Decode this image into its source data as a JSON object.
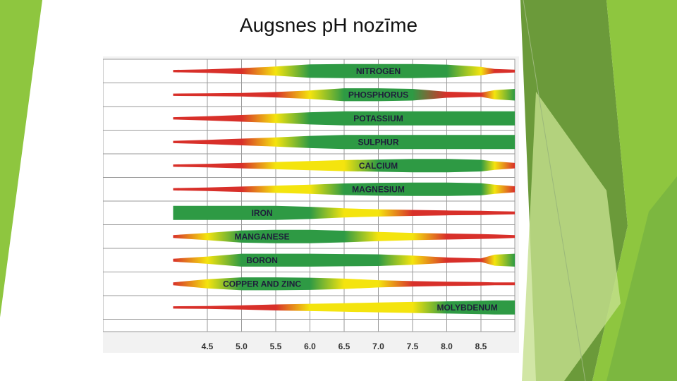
{
  "slide": {
    "title": "Augsnes pH nozīme"
  },
  "colors": {
    "good": "#2e9a44",
    "medium": "#f4e40e",
    "poor": "#d8302a",
    "grid": "#9a9a9a",
    "decor_light": "#8ec63f",
    "decor_dark": "#6b9a3a"
  },
  "chart_data": {
    "type": "band",
    "title": "",
    "x": [
      4.5,
      5.0,
      5.5,
      6.0,
      6.5,
      7.0,
      7.5,
      8.0,
      8.5
    ],
    "xlim": [
      4.0,
      9.0
    ],
    "tick_labels": [
      "4.5",
      "5.0",
      "5.5",
      "6.0",
      "6.5",
      "7.0",
      "7.5",
      "8.0",
      "8.5"
    ],
    "series": [
      {
        "name": "NITROGEN",
        "label_at": 7.0,
        "availability": [
          0.05,
          0.15,
          0.35,
          0.6,
          0.95,
          1.0,
          1.0,
          1.0,
          0.9,
          0.55,
          0.2,
          0.1,
          0.05
        ]
      },
      {
        "name": "PHOSPHORUS",
        "label_at": 7.0,
        "availability": [
          0.05,
          0.1,
          0.15,
          0.3,
          0.55,
          0.9,
          0.9,
          0.8,
          0.35,
          0.2,
          0.6,
          0.8,
          0.8
        ]
      },
      {
        "name": "POTASSIUM",
        "label_at": 7.0,
        "availability": [
          0.05,
          0.2,
          0.4,
          0.6,
          0.85,
          1.0,
          1.0,
          1.0,
          1.0,
          1.0,
          1.0,
          1.0,
          1.0
        ]
      },
      {
        "name": "SULPHUR",
        "label_at": 7.0,
        "availability": [
          0.05,
          0.2,
          0.4,
          0.6,
          0.85,
          1.0,
          1.0,
          1.0,
          1.0,
          1.0,
          1.0,
          1.0,
          1.0
        ]
      },
      {
        "name": "CALCIUM",
        "label_at": 7.0,
        "availability": [
          0.05,
          0.15,
          0.3,
          0.45,
          0.6,
          0.75,
          0.85,
          0.95,
          0.95,
          0.8,
          0.55,
          0.3,
          0.1
        ]
      },
      {
        "name": "MAGNESIUM",
        "label_at": 7.0,
        "availability": [
          0.05,
          0.15,
          0.3,
          0.45,
          0.6,
          0.8,
          0.9,
          0.95,
          0.95,
          0.85,
          0.6,
          0.35,
          0.15
        ]
      },
      {
        "name": "IRON",
        "label_at": 5.3,
        "availability": [
          1.0,
          1.0,
          1.0,
          1.0,
          0.85,
          0.6,
          0.45,
          0.35,
          0.25,
          0.2,
          0.15,
          0.1,
          0.1
        ]
      },
      {
        "name": "MANGANESE",
        "label_at": 5.3,
        "availability": [
          0.1,
          0.45,
          0.85,
          0.95,
          0.95,
          0.8,
          0.6,
          0.45,
          0.35,
          0.25,
          0.2,
          0.1,
          0.05
        ]
      },
      {
        "name": "BORON",
        "label_at": 5.3,
        "availability": [
          0.1,
          0.45,
          0.9,
          0.9,
          0.9,
          0.85,
          0.8,
          0.6,
          0.3,
          0.15,
          0.75,
          0.9,
          0.9
        ]
      },
      {
        "name": "COPPER AND ZINC",
        "label_at": 5.3,
        "availability": [
          0.1,
          0.6,
          0.9,
          0.9,
          0.85,
          0.7,
          0.45,
          0.3,
          0.2,
          0.15,
          0.1,
          0.1,
          0.1
        ]
      },
      {
        "name": "MOLYBDENUM",
        "label_at": 8.3,
        "availability": [
          0.05,
          0.1,
          0.2,
          0.35,
          0.45,
          0.55,
          0.65,
          0.75,
          0.85,
          0.95,
          1.0,
          1.0,
          1.0
        ]
      }
    ],
    "availability_ph": [
      4.0,
      4.5,
      5.0,
      5.5,
      6.0,
      6.5,
      7.0,
      7.5,
      8.0,
      8.5,
      8.7,
      9.0,
      9.0
    ]
  }
}
